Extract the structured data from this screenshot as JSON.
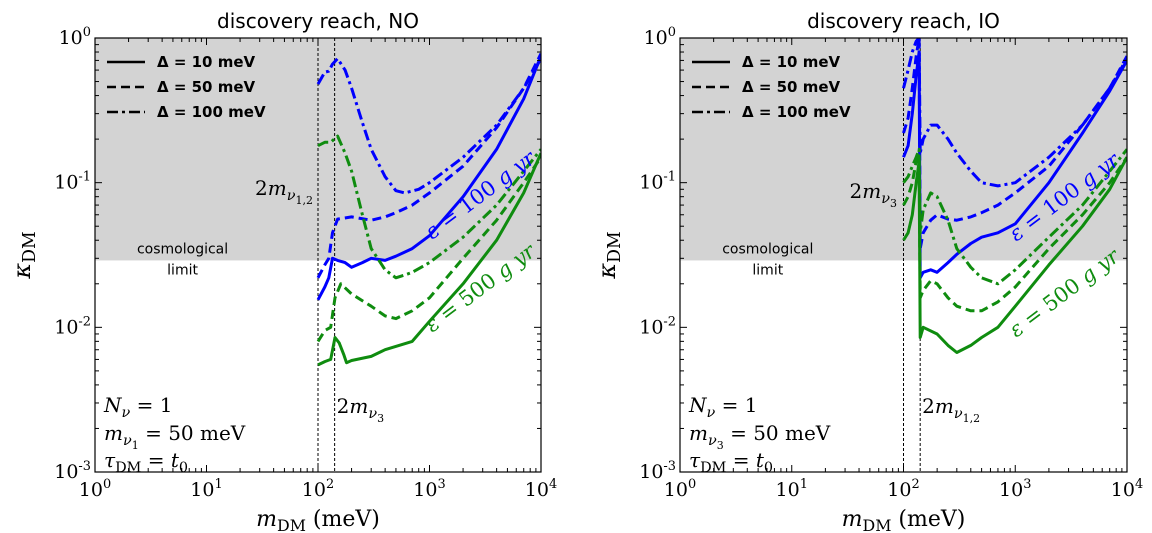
{
  "chart_data": [
    {
      "type": "line",
      "title": "discovery reach, NO",
      "xlabel": "m_DM (meV)",
      "ylabel": "κ_DM",
      "xscale": "log",
      "yscale": "log",
      "xlim": [
        1,
        10000
      ],
      "ylim": [
        0.001,
        1
      ],
      "x_tick_labels": [
        "10^0",
        "10^1",
        "10^2",
        "10^3",
        "10^4"
      ],
      "y_tick_labels": [
        "10^-3",
        "10^-2",
        "10^-1",
        "10^0"
      ],
      "shaded_region": {
        "label_line1": "cosmological",
        "label_line2": "limit",
        "y_from": 0.029,
        "y_to": 1,
        "color": "#d3d3d3"
      },
      "vlines": [
        {
          "x": 100,
          "label": "2m_ν1,2"
        },
        {
          "x": 141,
          "label": "2m_ν3"
        }
      ],
      "legend": {
        "placement": "top-left",
        "entries": [
          {
            "style": "solid",
            "label": "Δ = 10 meV"
          },
          {
            "style": "dashed",
            "label": "Δ = 50 meV"
          },
          {
            "style": "dashdot",
            "label": "Δ = 100 meV"
          }
        ]
      },
      "annotations": {
        "params": [
          "N_ν = 1",
          "m_ν1 = 50 meV",
          "τ_DM = t_0"
        ],
        "exposure_blue": "ε = 100 g yr",
        "exposure_green": "ε = 500 g yr"
      },
      "series": [
        {
          "color": "#0000ff",
          "style": "solid",
          "points": [
            [
              100,
              0.0155
            ],
            [
              115,
              0.019
            ],
            [
              125,
              0.022
            ],
            [
              135,
              0.03
            ],
            [
              150,
              0.029
            ],
            [
              175,
              0.028
            ],
            [
              200,
              0.026
            ],
            [
              250,
              0.028
            ],
            [
              300,
              0.03
            ],
            [
              400,
              0.029
            ],
            [
              500,
              0.031
            ],
            [
              700,
              0.035
            ],
            [
              1000,
              0.043
            ],
            [
              2000,
              0.08
            ],
            [
              4000,
              0.17
            ],
            [
              7000,
              0.38
            ],
            [
              10000,
              0.75
            ]
          ]
        },
        {
          "color": "#0000ff",
          "style": "dashed",
          "points": [
            [
              100,
              0.022
            ],
            [
              115,
              0.027
            ],
            [
              125,
              0.03
            ],
            [
              135,
              0.045
            ],
            [
              150,
              0.056
            ],
            [
              200,
              0.058
            ],
            [
              300,
              0.055
            ],
            [
              400,
              0.058
            ],
            [
              500,
              0.062
            ],
            [
              700,
              0.07
            ],
            [
              1000,
              0.085
            ],
            [
              2000,
              0.13
            ],
            [
              4000,
              0.24
            ],
            [
              7000,
              0.45
            ],
            [
              10000,
              0.78
            ]
          ]
        },
        {
          "color": "#0000ff",
          "style": "dashdot",
          "points": [
            [
              100,
              0.48
            ],
            [
              115,
              0.58
            ],
            [
              125,
              0.59
            ],
            [
              135,
              0.66
            ],
            [
              150,
              0.72
            ],
            [
              175,
              0.6
            ],
            [
              200,
              0.45
            ],
            [
              250,
              0.26
            ],
            [
              300,
              0.17
            ],
            [
              400,
              0.11
            ],
            [
              500,
              0.088
            ],
            [
              600,
              0.085
            ],
            [
              800,
              0.09
            ],
            [
              1000,
              0.1
            ],
            [
              2000,
              0.15
            ],
            [
              4000,
              0.25
            ],
            [
              7000,
              0.45
            ],
            [
              10000,
              0.72
            ]
          ]
        },
        {
          "color": "#0f8c0f",
          "style": "solid",
          "points": [
            [
              100,
              0.0055
            ],
            [
              115,
              0.0058
            ],
            [
              130,
              0.006
            ],
            [
              142,
              0.0085
            ],
            [
              155,
              0.0078
            ],
            [
              170,
              0.0065
            ],
            [
              180,
              0.0057
            ],
            [
              200,
              0.0059
            ],
            [
              300,
              0.0063
            ],
            [
              400,
              0.007
            ],
            [
              700,
              0.008
            ],
            [
              1000,
              0.011
            ],
            [
              2000,
              0.02
            ],
            [
              4000,
              0.04
            ],
            [
              7000,
              0.085
            ],
            [
              10000,
              0.16
            ]
          ]
        },
        {
          "color": "#0f8c0f",
          "style": "dashed",
          "points": [
            [
              100,
              0.008
            ],
            [
              115,
              0.0095
            ],
            [
              130,
              0.01
            ],
            [
              142,
              0.016
            ],
            [
              160,
              0.02
            ],
            [
              200,
              0.017
            ],
            [
              300,
              0.014
            ],
            [
              400,
              0.012
            ],
            [
              500,
              0.0115
            ],
            [
              700,
              0.013
            ],
            [
              1000,
              0.016
            ],
            [
              2000,
              0.03
            ],
            [
              4000,
              0.055
            ],
            [
              7000,
              0.1
            ],
            [
              10000,
              0.15
            ]
          ]
        },
        {
          "color": "#0f8c0f",
          "style": "dashdot",
          "points": [
            [
              100,
              0.18
            ],
            [
              115,
              0.19
            ],
            [
              130,
              0.19
            ],
            [
              150,
              0.21
            ],
            [
              175,
              0.16
            ],
            [
              200,
              0.12
            ],
            [
              250,
              0.06
            ],
            [
              300,
              0.035
            ],
            [
              400,
              0.025
            ],
            [
              500,
              0.022
            ],
            [
              600,
              0.023
            ],
            [
              700,
              0.024
            ],
            [
              1000,
              0.028
            ],
            [
              2000,
              0.042
            ],
            [
              4000,
              0.07
            ],
            [
              7000,
              0.12
            ],
            [
              10000,
              0.17
            ]
          ]
        }
      ]
    },
    {
      "type": "line",
      "title": "discovery reach, IO",
      "xlabel": "m_DM (meV)",
      "ylabel": "κ_DM",
      "xscale": "log",
      "yscale": "log",
      "xlim": [
        1,
        10000
      ],
      "ylim": [
        0.001,
        1
      ],
      "x_tick_labels": [
        "10^0",
        "10^1",
        "10^2",
        "10^3",
        "10^4"
      ],
      "y_tick_labels": [
        "10^-3",
        "10^-2",
        "10^-1",
        "10^0"
      ],
      "shaded_region": {
        "label_line1": "cosmological",
        "label_line2": "limit",
        "y_from": 0.029,
        "y_to": 1,
        "color": "#d3d3d3"
      },
      "vlines": [
        {
          "x": 100,
          "label": "2m_ν3"
        },
        {
          "x": 141,
          "label": "2m_ν1,2"
        }
      ],
      "legend": {
        "placement": "top-left",
        "entries": [
          {
            "style": "solid",
            "label": "Δ = 10 meV"
          },
          {
            "style": "dashed",
            "label": "Δ = 50 meV"
          },
          {
            "style": "dashdot",
            "label": "Δ = 100 meV"
          }
        ]
      },
      "annotations": {
        "params": [
          "N_ν = 1",
          "m_ν3 = 50 meV",
          "τ_DM = t_0"
        ],
        "exposure_blue": "ε = 100 g yr",
        "exposure_green": "ε = 500 g yr"
      },
      "series": [
        {
          "color": "#0000ff",
          "style": "solid",
          "points": [
            [
              100,
              0.15
            ],
            [
              110,
              0.18
            ],
            [
              120,
              0.3
            ],
            [
              130,
              0.55
            ],
            [
              138,
              0.8
            ],
            [
              141,
              0.022
            ],
            [
              150,
              0.024
            ],
            [
              175,
              0.025
            ],
            [
              200,
              0.024
            ],
            [
              250,
              0.028
            ],
            [
              300,
              0.032
            ],
            [
              400,
              0.038
            ],
            [
              500,
              0.042
            ],
            [
              700,
              0.045
            ],
            [
              1000,
              0.052
            ],
            [
              2000,
              0.1
            ],
            [
              4000,
              0.22
            ],
            [
              7000,
              0.43
            ],
            [
              10000,
              0.7
            ]
          ]
        },
        {
          "color": "#0000ff",
          "style": "dashed",
          "points": [
            [
              100,
              0.22
            ],
            [
              110,
              0.28
            ],
            [
              120,
              0.45
            ],
            [
              130,
              0.75
            ],
            [
              138,
              1.0
            ],
            [
              141,
              0.035
            ],
            [
              150,
              0.045
            ],
            [
              175,
              0.055
            ],
            [
              200,
              0.06
            ],
            [
              250,
              0.056
            ],
            [
              300,
              0.055
            ],
            [
              400,
              0.058
            ],
            [
              500,
              0.062
            ],
            [
              700,
              0.07
            ],
            [
              1000,
              0.085
            ],
            [
              2000,
              0.13
            ],
            [
              4000,
              0.25
            ],
            [
              7000,
              0.45
            ],
            [
              10000,
              0.75
            ]
          ]
        },
        {
          "color": "#0000ff",
          "style": "dashdot",
          "points": [
            [
              100,
              0.45
            ],
            [
              110,
              0.6
            ],
            [
              120,
              0.8
            ],
            [
              130,
              0.95
            ],
            [
              138,
              1.0
            ],
            [
              141,
              0.16
            ],
            [
              150,
              0.2
            ],
            [
              175,
              0.25
            ],
            [
              200,
              0.25
            ],
            [
              250,
              0.2
            ],
            [
              300,
              0.16
            ],
            [
              400,
              0.12
            ],
            [
              500,
              0.1
            ],
            [
              700,
              0.095
            ],
            [
              1000,
              0.1
            ],
            [
              2000,
              0.15
            ],
            [
              4000,
              0.25
            ],
            [
              7000,
              0.45
            ],
            [
              10000,
              0.72
            ]
          ]
        },
        {
          "color": "#0f8c0f",
          "style": "solid",
          "points": [
            [
              100,
              0.04
            ],
            [
              110,
              0.045
            ],
            [
              120,
              0.06
            ],
            [
              130,
              0.1
            ],
            [
              138,
              0.14
            ],
            [
              141,
              0.0085
            ],
            [
              150,
              0.01
            ],
            [
              200,
              0.009
            ],
            [
              250,
              0.0075
            ],
            [
              300,
              0.0067
            ],
            [
              400,
              0.0075
            ],
            [
              500,
              0.0085
            ],
            [
              700,
              0.01
            ],
            [
              1000,
              0.014
            ],
            [
              2000,
              0.027
            ],
            [
              4000,
              0.05
            ],
            [
              7000,
              0.09
            ],
            [
              10000,
              0.15
            ]
          ]
        },
        {
          "color": "#0f8c0f",
          "style": "dashed",
          "points": [
            [
              100,
              0.07
            ],
            [
              110,
              0.08
            ],
            [
              120,
              0.1
            ],
            [
              130,
              0.14
            ],
            [
              138,
              0.16
            ],
            [
              141,
              0.016
            ],
            [
              150,
              0.018
            ],
            [
              175,
              0.021
            ],
            [
              200,
              0.02
            ],
            [
              250,
              0.016
            ],
            [
              300,
              0.014
            ],
            [
              400,
              0.013
            ],
            [
              500,
              0.013
            ],
            [
              700,
              0.015
            ],
            [
              1000,
              0.019
            ],
            [
              2000,
              0.035
            ],
            [
              4000,
              0.06
            ],
            [
              7000,
              0.1
            ],
            [
              10000,
              0.15
            ]
          ]
        },
        {
          "color": "#0f8c0f",
          "style": "dashdot",
          "points": [
            [
              100,
              0.1
            ],
            [
              110,
              0.11
            ],
            [
              120,
              0.13
            ],
            [
              130,
              0.15
            ],
            [
              138,
              0.17
            ],
            [
              141,
              0.045
            ],
            [
              150,
              0.065
            ],
            [
              175,
              0.085
            ],
            [
              200,
              0.08
            ],
            [
              250,
              0.055
            ],
            [
              300,
              0.035
            ],
            [
              400,
              0.026
            ],
            [
              500,
              0.022
            ],
            [
              700,
              0.02
            ],
            [
              1000,
              0.025
            ],
            [
              2000,
              0.042
            ],
            [
              4000,
              0.07
            ],
            [
              7000,
              0.12
            ],
            [
              10000,
              0.17
            ]
          ]
        }
      ]
    }
  ]
}
